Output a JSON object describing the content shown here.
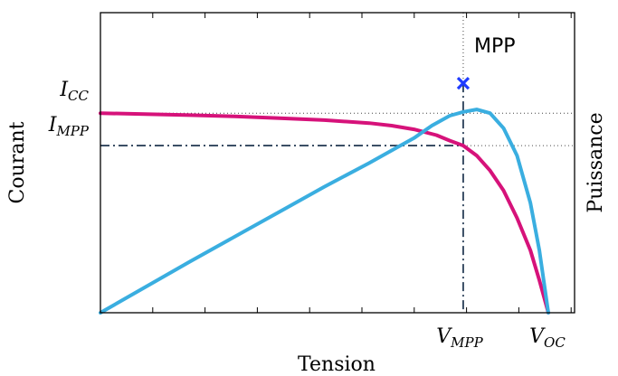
{
  "chart_data": {
    "type": "line",
    "x_label": "Tension",
    "y_left_label": "Courant",
    "y_right_label": "Puissance",
    "grid": false,
    "x_ticks": {
      "vmpp": {
        "main": "V",
        "sub": "MPP"
      },
      "voc": {
        "main": "V",
        "sub": "OC"
      }
    },
    "y_ticks": {
      "icc": {
        "main": "I",
        "sub": "CC"
      },
      "impp": {
        "main": "I",
        "sub": "MPP"
      }
    },
    "annotation": "MPP",
    "key_points": {
      "vmpp": 0.81,
      "voc": 1.0,
      "icc": 0.8,
      "impp": 0.67,
      "pmax": 0.92
    },
    "series": [
      {
        "color": "#d6127a",
        "axis": "left",
        "points": [
          [
            0,
            0.8
          ],
          [
            0.1,
            0.796
          ],
          [
            0.2,
            0.792
          ],
          [
            0.3,
            0.787
          ],
          [
            0.4,
            0.78
          ],
          [
            0.5,
            0.772
          ],
          [
            0.6,
            0.76
          ],
          [
            0.65,
            0.75
          ],
          [
            0.7,
            0.735
          ],
          [
            0.75,
            0.712
          ],
          [
            0.78,
            0.69
          ],
          [
            0.81,
            0.67
          ],
          [
            0.84,
            0.63
          ],
          [
            0.87,
            0.57
          ],
          [
            0.9,
            0.49
          ],
          [
            0.93,
            0.38
          ],
          [
            0.96,
            0.25
          ],
          [
            0.98,
            0.13
          ],
          [
            1.0,
            0.0
          ]
        ]
      },
      {
        "color": "#3aaee0",
        "axis": "right",
        "points": [
          [
            0,
            0
          ],
          [
            0.2,
            0.205
          ],
          [
            0.4,
            0.405
          ],
          [
            0.5,
            0.505
          ],
          [
            0.6,
            0.6
          ],
          [
            0.66,
            0.66
          ],
          [
            0.7,
            0.7
          ],
          [
            0.74,
            0.75
          ],
          [
            0.78,
            0.79
          ],
          [
            0.81,
            0.805
          ],
          [
            0.84,
            0.815
          ],
          [
            0.87,
            0.8
          ],
          [
            0.9,
            0.74
          ],
          [
            0.93,
            0.63
          ],
          [
            0.96,
            0.44
          ],
          [
            0.98,
            0.25
          ],
          [
            1.0,
            0.0
          ]
        ]
      }
    ],
    "colors": {
      "current": "#d6127a",
      "power": "#3aaee0",
      "guide": "#0f2742",
      "marker": "#1f3cff"
    }
  }
}
